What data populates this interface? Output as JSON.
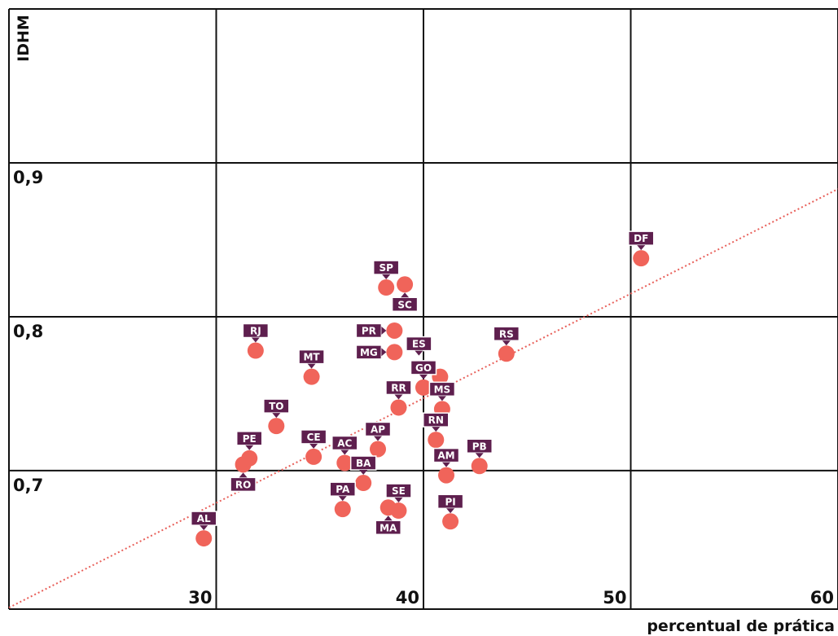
{
  "chart_data": {
    "type": "scatter",
    "xlabel": "percentual de prática",
    "ylabel": "IDHM",
    "xlim": [
      20,
      60
    ],
    "ylim": [
      0.61,
      1.0
    ],
    "x_ticks": [
      30,
      40,
      50,
      60
    ],
    "x_tick_labels": [
      "30",
      "40",
      "50",
      "60"
    ],
    "y_ticks": [
      0.7,
      0.8,
      0.9
    ],
    "y_tick_labels": [
      "0,7",
      "0,8",
      "0,9"
    ],
    "grid": true,
    "point_color": "#f0645a",
    "label_color": "#5e1f4e",
    "trend_color": "#e8605a",
    "trendline": {
      "x": [
        20,
        60
      ],
      "y": [
        0.611,
        0.883
      ]
    },
    "points": [
      {
        "label": "DF",
        "x": 50.5,
        "y": 0.838,
        "pos": "above"
      },
      {
        "label": "SP",
        "x": 38.2,
        "y": 0.819,
        "pos": "above"
      },
      {
        "label": "SC",
        "x": 39.1,
        "y": 0.821,
        "pos": "below"
      },
      {
        "label": "RJ",
        "x": 31.9,
        "y": 0.778,
        "pos": "above"
      },
      {
        "label": "PR",
        "x": 38.6,
        "y": 0.791,
        "pos": "left"
      },
      {
        "label": "MG",
        "x": 38.6,
        "y": 0.777,
        "pos": "left"
      },
      {
        "label": "RS",
        "x": 44.0,
        "y": 0.776,
        "pos": "above"
      },
      {
        "label": "ES",
        "x": 40.8,
        "y": 0.761,
        "pos": "above-left"
      },
      {
        "label": "MT",
        "x": 34.6,
        "y": 0.761,
        "pos": "above"
      },
      {
        "label": "GO",
        "x": 40.0,
        "y": 0.754,
        "pos": "above"
      },
      {
        "label": "RR",
        "x": 38.8,
        "y": 0.741,
        "pos": "above"
      },
      {
        "label": "MS",
        "x": 40.9,
        "y": 0.74,
        "pos": "above"
      },
      {
        "label": "TO",
        "x": 32.9,
        "y": 0.729,
        "pos": "above"
      },
      {
        "label": "RN",
        "x": 40.6,
        "y": 0.72,
        "pos": "above"
      },
      {
        "label": "AP",
        "x": 37.8,
        "y": 0.714,
        "pos": "above"
      },
      {
        "label": "CE",
        "x": 34.7,
        "y": 0.709,
        "pos": "above"
      },
      {
        "label": "PE",
        "x": 31.6,
        "y": 0.708,
        "pos": "above"
      },
      {
        "label": "RO",
        "x": 31.3,
        "y": 0.704,
        "pos": "below"
      },
      {
        "label": "AC",
        "x": 36.2,
        "y": 0.705,
        "pos": "above"
      },
      {
        "label": "AM",
        "x": 41.1,
        "y": 0.697,
        "pos": "above"
      },
      {
        "label": "PB",
        "x": 42.7,
        "y": 0.703,
        "pos": "above"
      },
      {
        "label": "BA",
        "x": 37.1,
        "y": 0.692,
        "pos": "above"
      },
      {
        "label": "PA",
        "x": 36.1,
        "y": 0.675,
        "pos": "above"
      },
      {
        "label": "SE",
        "x": 38.8,
        "y": 0.674,
        "pos": "above"
      },
      {
        "label": "MA",
        "x": 38.3,
        "y": 0.676,
        "pos": "below"
      },
      {
        "label": "PI",
        "x": 41.3,
        "y": 0.667,
        "pos": "above"
      },
      {
        "label": "AL",
        "x": 29.4,
        "y": 0.656,
        "pos": "above"
      }
    ]
  }
}
